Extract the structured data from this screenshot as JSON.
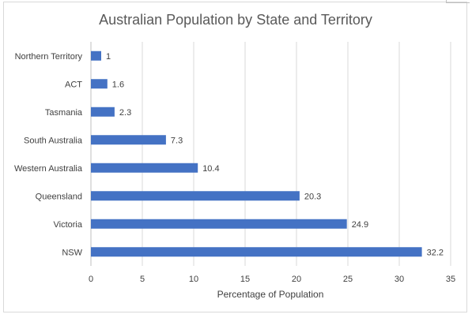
{
  "chart_data": {
    "type": "bar",
    "orientation": "horizontal",
    "title": "Australian Population by State and Territory",
    "xlabel": "Percentage of Population",
    "ylabel": "",
    "categories": [
      "Northern Territory",
      "ACT",
      "Tasmania",
      "South Australia",
      "Western Australia",
      "Queensland",
      "Victoria",
      "NSW"
    ],
    "values": [
      1,
      1.6,
      2.3,
      7.3,
      10.4,
      20.3,
      24.9,
      32.2
    ],
    "data_labels": [
      "1",
      "1.6",
      "2.3",
      "7.3",
      "10.4",
      "20.3",
      "24.9",
      "32.2"
    ],
    "xlim": [
      0,
      35
    ],
    "xticks": [
      "0",
      "5",
      "10",
      "15",
      "20",
      "25",
      "30",
      "35"
    ],
    "grid": "vertical",
    "legend": "none",
    "colors": {
      "bar": "#4472c4",
      "grid": "#d9d9d9",
      "text": "#404040",
      "title": "#595959"
    }
  }
}
